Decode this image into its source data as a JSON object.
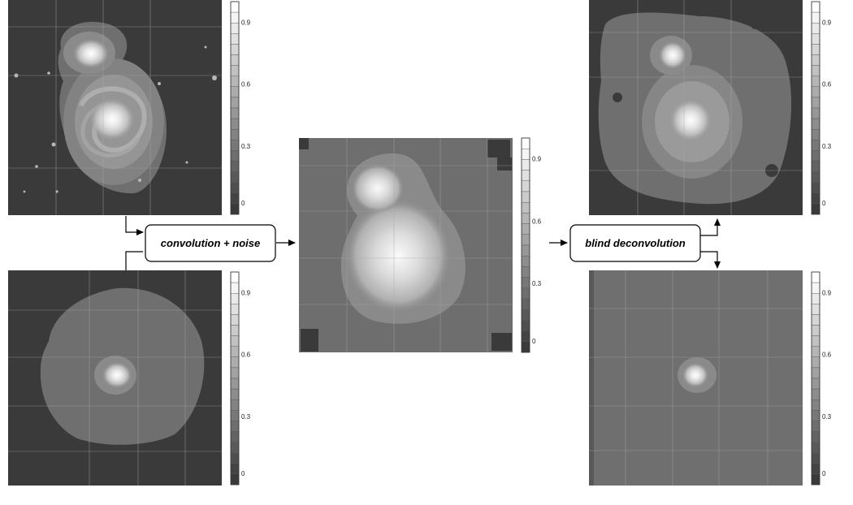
{
  "process_boxes": {
    "convolution": "convolution + noise",
    "deconvolution": "blind deconvolution"
  },
  "colorbar_ticks": [
    "0.9",
    "0.6",
    "0.3",
    "0"
  ],
  "panels": [
    {
      "id": "galaxy-original",
      "content": "two-component spiral galaxy"
    },
    {
      "id": "psf-original",
      "content": "point spread function"
    },
    {
      "id": "blurred-observation",
      "content": "convolved noisy galaxy"
    },
    {
      "id": "galaxy-restored",
      "content": "restored galaxy"
    },
    {
      "id": "psf-restored",
      "content": "restored point spread function"
    }
  ],
  "colors": {
    "background_dark": "#3a3a3a",
    "background_mid": "#6f6f6f",
    "halo": "#8a8a8a",
    "core": "#f8f8f8",
    "grid": "#a8a8a8",
    "box_stroke": "#000000"
  }
}
